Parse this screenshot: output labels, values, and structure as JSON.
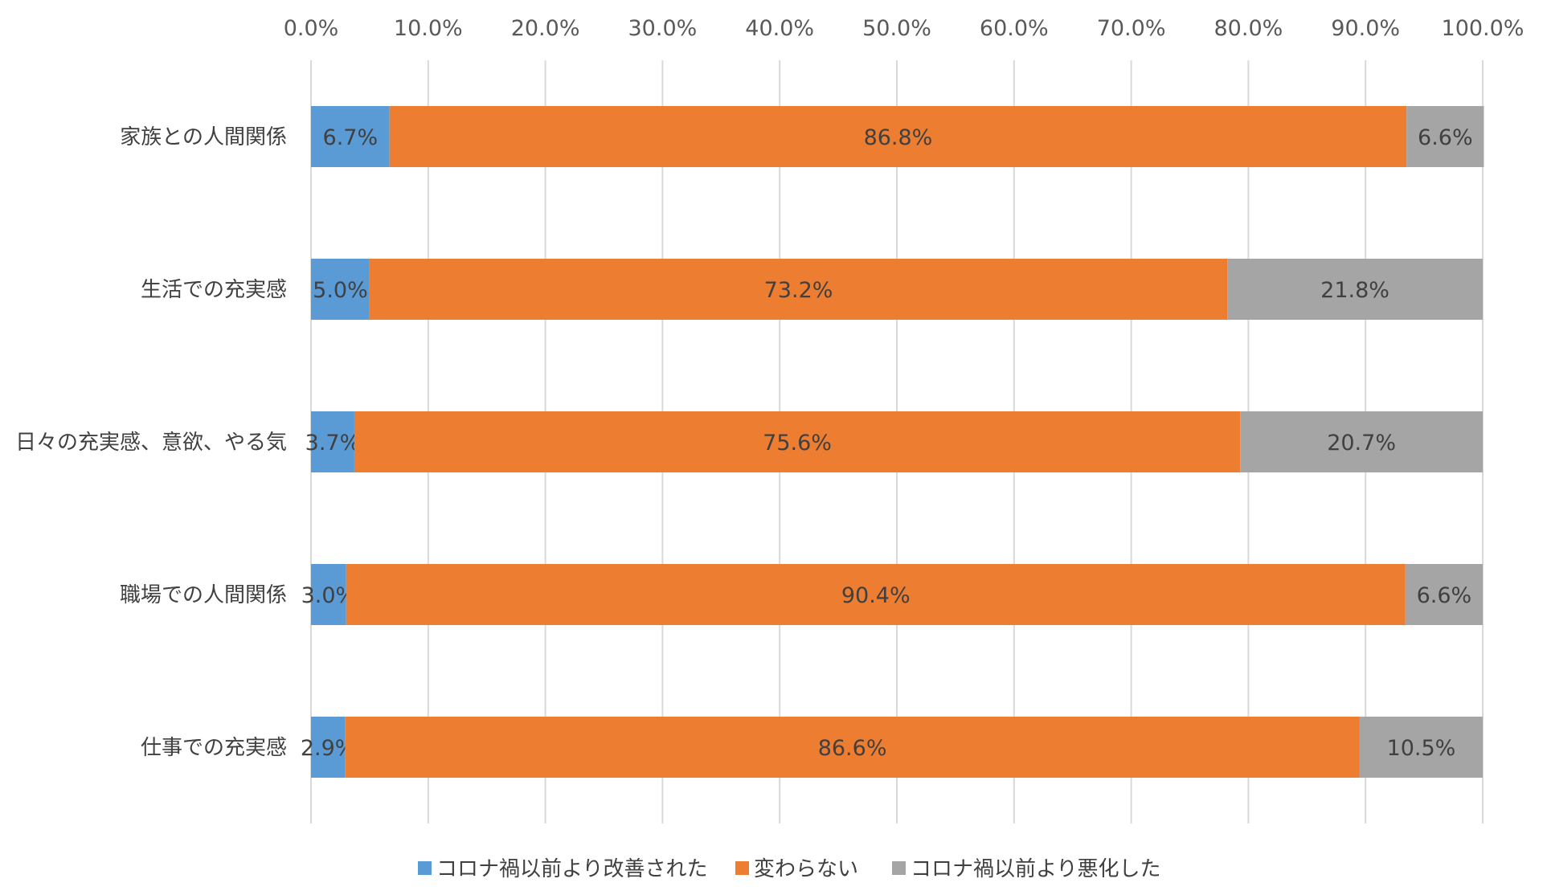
{
  "chart_data": {
    "type": "bar",
    "orientation": "horizontal",
    "stacked": "percent",
    "categories": [
      "家族との人間関係",
      "生活での充実感",
      "日々の充実感、意欲、やる気",
      "職場での人間関係",
      "仕事での充実感"
    ],
    "series": [
      {
        "name": "コロナ禍以前より改善された",
        "color": "#5B9BD5",
        "values": [
          6.7,
          5.0,
          3.7,
          3.0,
          2.9
        ]
      },
      {
        "name": "変わらない",
        "color": "#ED7D31",
        "values": [
          86.8,
          73.2,
          75.6,
          90.4,
          86.6
        ]
      },
      {
        "name": "コロナ禍以前より悪化した",
        "color": "#A5A5A5",
        "values": [
          6.6,
          21.8,
          20.7,
          6.6,
          10.5
        ]
      }
    ],
    "xlim": [
      0,
      100
    ],
    "xticks": [
      0,
      10,
      20,
      30,
      40,
      50,
      60,
      70,
      80,
      90,
      100
    ],
    "xtick_labels": [
      "0.0%",
      "10.0%",
      "20.0%",
      "30.0%",
      "40.0%",
      "50.0%",
      "60.0%",
      "70.0%",
      "80.0%",
      "90.0%",
      "100.0%"
    ],
    "axis_position": "top",
    "grid": true,
    "legend_position": "bottom",
    "data_labels": true
  }
}
